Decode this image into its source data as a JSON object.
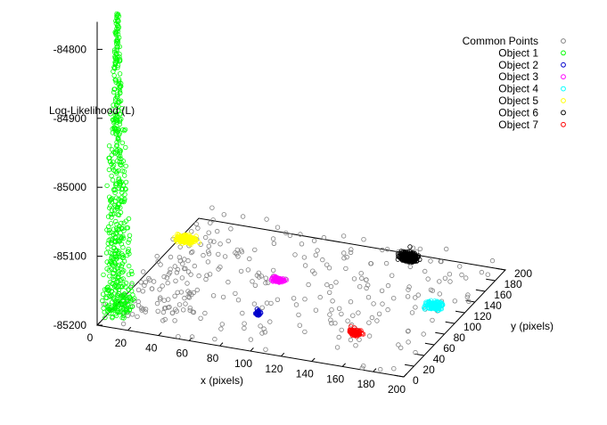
{
  "chart_data": {
    "type": "scatter",
    "zlabel": "Log-Likelihood (L)",
    "xlabel": "x (pixels)",
    "ylabel": "y (pixels)",
    "xlim": [
      0,
      200
    ],
    "ylim": [
      0,
      200
    ],
    "zlim": [
      -85200,
      -84750
    ],
    "xticks": [
      "0",
      "20",
      "40",
      "60",
      "80",
      "100",
      "120",
      "140",
      "160",
      "180",
      "200"
    ],
    "yticks": [
      "0",
      "20",
      "40",
      "60",
      "80",
      "100",
      "120",
      "140",
      "160",
      "180",
      "200"
    ],
    "zticks": [
      "-84800",
      "-84900",
      "-85000",
      "-85100",
      "-85200"
    ],
    "legend_position": "top-right",
    "series": [
      {
        "name": "Common Points",
        "color": "#808080",
        "marker": "open-circle"
      },
      {
        "name": "Object 1",
        "color": "#00ff00",
        "marker": "open-circle",
        "center_xy": [
          5,
          25
        ],
        "peak_z": -84765
      },
      {
        "name": "Object 2",
        "color": "#0000cc",
        "marker": "open-circle",
        "center_xy": [
          85,
          60
        ],
        "peak_z": -85200
      },
      {
        "name": "Object 3",
        "color": "#ff00ff",
        "marker": "open-circle",
        "center_xy": [
          78,
          120
        ],
        "peak_z": -85200
      },
      {
        "name": "Object 4",
        "color": "#00ffff",
        "marker": "open-circle",
        "center_xy": [
          180,
          120
        ],
        "peak_z": -85200
      },
      {
        "name": "Object 5",
        "color": "#ffff00",
        "marker": "open-circle",
        "center_xy": [
          5,
          160
        ],
        "peak_z": -85200
      },
      {
        "name": "Object 6",
        "color": "#000000",
        "marker": "open-circle",
        "center_xy": [
          140,
          190
        ],
        "peak_z": -85200
      },
      {
        "name": "Object 7",
        "color": "#ff0000",
        "marker": "open-circle",
        "center_xy": [
          150,
          55
        ],
        "peak_z": -85200
      }
    ]
  }
}
